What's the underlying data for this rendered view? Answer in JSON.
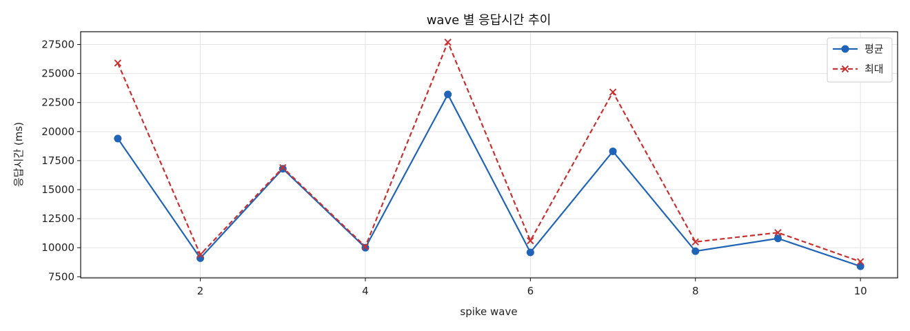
{
  "chart_data": {
    "type": "line",
    "title": "wave 별 응답시간 추이",
    "xlabel": "spike wave",
    "ylabel": "응답시간 (ms)",
    "x": [
      1,
      2,
      3,
      4,
      5,
      6,
      7,
      8,
      9,
      10
    ],
    "xlim": [
      0.55,
      10.45
    ],
    "ylim": [
      7400,
      28600
    ],
    "xticks": [
      2,
      4,
      6,
      8,
      10
    ],
    "yticks": [
      7500,
      10000,
      12500,
      15000,
      17500,
      20000,
      22500,
      25000,
      27500
    ],
    "grid": true,
    "legend_position": "top-right",
    "series": [
      {
        "name": "평균",
        "color": "#1f64b8",
        "line_style": "solid",
        "marker": "circle",
        "values": [
          19400,
          9100,
          16800,
          10000,
          23200,
          9600,
          18300,
          9700,
          10800,
          8400
        ]
      },
      {
        "name": "최대",
        "color": "#c93030",
        "line_style": "dashed",
        "marker": "x",
        "values": [
          25900,
          9400,
          16900,
          10100,
          27700,
          10600,
          23400,
          10500,
          11300,
          8800
        ]
      }
    ]
  }
}
